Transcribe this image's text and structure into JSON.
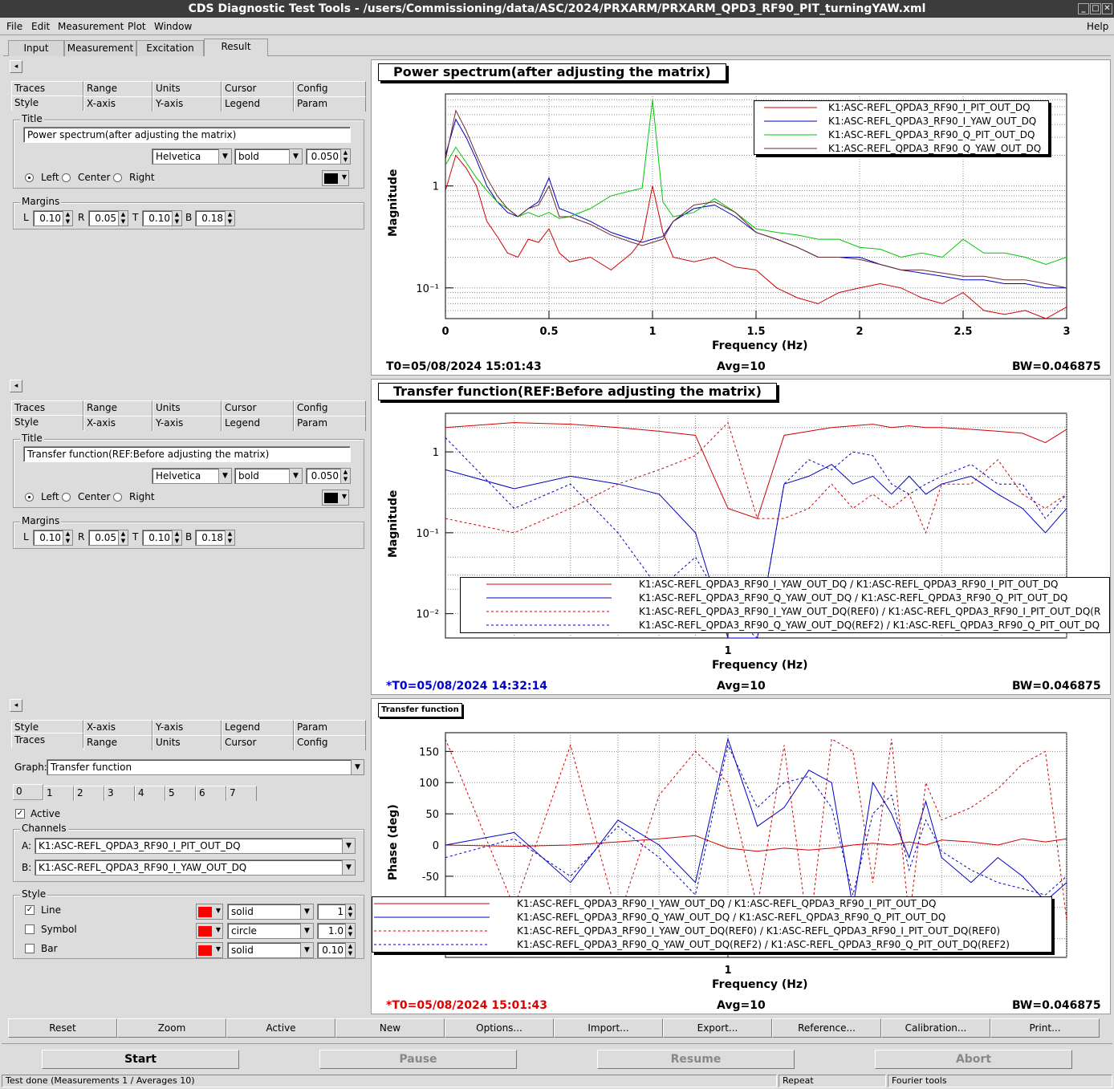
{
  "window": {
    "title": "CDS Diagnostic Test Tools - /users/Commissioning/data/ASC/2024/PRXARM/PRXARM_QPD3_RF90_PIT_turningYAW.xml"
  },
  "menu": {
    "file": "File",
    "edit": "Edit",
    "measurement": "Measurement",
    "plot": "Plot",
    "window": "Window",
    "help": "Help"
  },
  "tabs": {
    "input": "Input",
    "measurement": "Measurement",
    "excitation": "Excitation",
    "result": "Result"
  },
  "opt": {
    "traces": "Traces",
    "range": "Range",
    "units": "Units",
    "cursor": "Cursor",
    "config": "Config",
    "style": "Style",
    "xaxis": "X-axis",
    "yaxis": "Y-axis",
    "legend": "Legend",
    "param": "Param",
    "title_group": "Title",
    "font": "Helvetica",
    "weight": "bold",
    "size": "0.050",
    "left": "Left",
    "center": "Center",
    "right": "Right",
    "margins": "Margins",
    "L": "L",
    "R": "R",
    "T": "T",
    "B": "B",
    "mL": "0.10",
    "mR": "0.05",
    "mT": "0.10",
    "mB": "0.18"
  },
  "panel1": {
    "title_value": "Power spectrum(after adjusting the matrix)"
  },
  "panel2": {
    "title_value": "Transfer function(REF:Before adjusting the matrix)"
  },
  "panel3": {
    "graph_label": "Graph:",
    "graph_value": "Transfer function",
    "trace_tabs": [
      "0",
      "1",
      "2",
      "3",
      "4",
      "5",
      "6",
      "7"
    ],
    "active": "Active",
    "channels": "Channels",
    "a_label": "A:",
    "a_value": "K1:ASC-REFL_QPDA3_RF90_I_PIT_OUT_DQ",
    "b_label": "B:",
    "b_value": "K1:ASC-REFL_QPDA3_RF90_I_YAW_OUT_DQ",
    "style": "Style",
    "line": "Line",
    "symbol": "Symbol",
    "bar": "Bar",
    "line_style": "solid",
    "line_width": "1",
    "symbol_style": "circle",
    "symbol_size": "1.0",
    "bar_style": "solid",
    "bar_width": "0.10",
    "trace_color": "#ff0000"
  },
  "plot1": {
    "title": "Power spectrum(after adjusting the matrix)",
    "ylabel": "Magnitude",
    "xlabel": "Frequency (Hz)",
    "yticks": [
      "1",
      "10⁻¹"
    ],
    "xticks": [
      "0",
      "0.5",
      "1",
      "1.5",
      "2",
      "2.5",
      "3"
    ],
    "legend": [
      "K1:ASC-REFL_QPDA3_RF90_I_PIT_OUT_DQ",
      "K1:ASC-REFL_QPDA3_RF90_I_YAW_OUT_DQ",
      "K1:ASC-REFL_QPDA3_RF90_Q_PIT_OUT_DQ",
      "K1:ASC-REFL_QPDA3_RF90_Q_YAW_OUT_DQ"
    ],
    "t0": "T0=05/08/2024 15:01:43",
    "avg": "Avg=10",
    "bw": "BW=0.046875"
  },
  "plot2": {
    "title": "Transfer function(REF:Before adjusting the matrix)",
    "ylabel": "Magnitude",
    "xlabel": "Frequency (Hz)",
    "yticks": [
      "1",
      "10⁻¹",
      "10⁻²"
    ],
    "xticks": [
      "1"
    ],
    "legend": [
      "K1:ASC-REFL_QPDA3_RF90_I_YAW_OUT_DQ / K1:ASC-REFL_QPDA3_RF90_I_PIT_OUT_DQ",
      "K1:ASC-REFL_QPDA3_RF90_Q_YAW_OUT_DQ / K1:ASC-REFL_QPDA3_RF90_Q_PIT_OUT_DQ",
      "K1:ASC-REFL_QPDA3_RF90_I_YAW_OUT_DQ(REF0) / K1:ASC-REFL_QPDA3_RF90_I_PIT_OUT_DQ(R",
      "K1:ASC-REFL_QPDA3_RF90_Q_YAW_OUT_DQ(REF2) / K1:ASC-REFL_QPDA3_RF90_Q_PIT_OUT_DQ"
    ],
    "t0": "*T0=05/08/2024 14:32:14",
    "avg": "Avg=10",
    "bw": "BW=0.046875"
  },
  "plot3": {
    "title": "Transfer function",
    "ylabel": "Phase (deg)",
    "xlabel": "Frequency (Hz)",
    "yticks": [
      "150",
      "100",
      "50",
      "0",
      "-50"
    ],
    "xticks": [
      "1"
    ],
    "legend": [
      "K1:ASC-REFL_QPDA3_RF90_I_YAW_OUT_DQ / K1:ASC-REFL_QPDA3_RF90_I_PIT_OUT_DQ",
      "K1:ASC-REFL_QPDA3_RF90_Q_YAW_OUT_DQ / K1:ASC-REFL_QPDA3_RF90_Q_PIT_OUT_DQ",
      "K1:ASC-REFL_QPDA3_RF90_I_YAW_OUT_DQ(REF0) / K1:ASC-REFL_QPDA3_RF90_I_PIT_OUT_DQ(REF0)",
      "K1:ASC-REFL_QPDA3_RF90_Q_YAW_OUT_DQ(REF2) / K1:ASC-REFL_QPDA3_RF90_Q_PIT_OUT_DQ(REF2)"
    ],
    "t0": "*T0=05/08/2024 15:01:43",
    "avg": "Avg=10",
    "bw": "BW=0.046875"
  },
  "buttons": [
    "Reset",
    "Zoom",
    "Active",
    "New",
    "Options...",
    "Import...",
    "Export...",
    "Reference...",
    "Calibration...",
    "Print..."
  ],
  "control": {
    "start": "Start",
    "pause": "Pause",
    "resume": "Resume",
    "abort": "Abort"
  },
  "status": {
    "text": "Test done (Measurements 1 / Averages 10)",
    "repeat": "Repeat",
    "fourier": "Fourier tools"
  },
  "colors": {
    "red": "#d00000",
    "blue": "#0000c0",
    "green": "#00c800",
    "darkred": "#6a2a2a"
  },
  "chart_data": [
    {
      "type": "line",
      "title": "Power spectrum(after adjusting the matrix)",
      "xlabel": "Frequency (Hz)",
      "ylabel": "Magnitude",
      "yscale": "log",
      "xlim": [
        0,
        3
      ],
      "ylim": [
        0.05,
        8
      ],
      "x": [
        0,
        0.05,
        0.1,
        0.15,
        0.2,
        0.25,
        0.3,
        0.35,
        0.4,
        0.45,
        0.5,
        0.55,
        0.6,
        0.7,
        0.8,
        0.9,
        0.95,
        1.0,
        1.05,
        1.1,
        1.2,
        1.3,
        1.4,
        1.5,
        1.6,
        1.7,
        1.8,
        1.9,
        2.0,
        2.1,
        2.2,
        2.3,
        2.4,
        2.5,
        2.6,
        2.7,
        2.8,
        2.9,
        3.0
      ],
      "series": [
        {
          "name": "K1:ASC-REFL_QPDA3_RF90_I_PIT_OUT_DQ",
          "color": "#d00000",
          "values": [
            0.9,
            2.0,
            1.5,
            1.0,
            0.45,
            0.32,
            0.22,
            0.2,
            0.3,
            0.28,
            0.38,
            0.22,
            0.18,
            0.2,
            0.15,
            0.22,
            0.3,
            1.0,
            0.35,
            0.2,
            0.18,
            0.2,
            0.16,
            0.15,
            0.1,
            0.08,
            0.07,
            0.09,
            0.1,
            0.11,
            0.1,
            0.08,
            0.07,
            0.09,
            0.06,
            0.055,
            0.06,
            0.05,
            0.065
          ]
        },
        {
          "name": "K1:ASC-REFL_QPDA3_RF90_I_YAW_OUT_DQ",
          "color": "#0000c0",
          "values": [
            2.0,
            4.5,
            3.0,
            1.8,
            1.0,
            0.7,
            0.55,
            0.5,
            0.6,
            0.7,
            1.2,
            0.6,
            0.55,
            0.45,
            0.35,
            0.3,
            0.28,
            0.3,
            0.32,
            0.45,
            0.6,
            0.65,
            0.5,
            0.35,
            0.3,
            0.25,
            0.2,
            0.2,
            0.2,
            0.17,
            0.15,
            0.14,
            0.13,
            0.12,
            0.12,
            0.11,
            0.11,
            0.1,
            0.1
          ]
        },
        {
          "name": "K1:ASC-REFL_QPDA3_RF90_Q_PIT_OUT_DQ",
          "color": "#00c800",
          "values": [
            1.6,
            2.4,
            1.7,
            1.2,
            0.9,
            0.7,
            0.6,
            0.5,
            0.55,
            0.5,
            0.55,
            0.48,
            0.5,
            0.6,
            0.8,
            0.9,
            0.95,
            7.0,
            0.7,
            0.5,
            0.55,
            0.75,
            0.55,
            0.38,
            0.35,
            0.33,
            0.3,
            0.3,
            0.25,
            0.24,
            0.2,
            0.22,
            0.2,
            0.3,
            0.22,
            0.22,
            0.2,
            0.17,
            0.2
          ]
        },
        {
          "name": "K1:ASC-REFL_QPDA3_RF90_Q_YAW_OUT_DQ",
          "color": "#6a2a2a",
          "values": [
            1.8,
            5.5,
            3.5,
            2.0,
            1.2,
            0.8,
            0.6,
            0.5,
            0.6,
            0.65,
            1.0,
            0.5,
            0.5,
            0.42,
            0.33,
            0.28,
            0.26,
            0.28,
            0.3,
            0.45,
            0.65,
            0.7,
            0.55,
            0.35,
            0.3,
            0.25,
            0.2,
            0.2,
            0.19,
            0.17,
            0.15,
            0.15,
            0.14,
            0.13,
            0.13,
            0.12,
            0.12,
            0.11,
            0.1
          ]
        }
      ]
    },
    {
      "type": "line",
      "title": "Transfer function(REF:Before adjusting the matrix)",
      "xlabel": "Frequency (Hz)",
      "ylabel": "Magnitude",
      "yscale": "log",
      "ylim": [
        0.005,
        3
      ],
      "x": [
        0.4,
        0.5,
        0.6,
        0.7,
        0.8,
        0.9,
        1.0,
        1.1,
        1.2,
        1.3,
        1.4,
        1.5,
        1.6,
        1.7,
        1.8,
        1.9,
        2.0,
        2.2,
        2.4,
        2.6,
        2.8,
        3.0
      ],
      "series": [
        {
          "name": "K1:ASC-REFL_QPDA3_RF90_I_YAW_OUT_DQ / K1:ASC-REFL_QPDA3_RF90_I_PIT_OUT_DQ",
          "color": "#d00000",
          "dash": "solid",
          "values": [
            2.0,
            2.3,
            2.2,
            2.0,
            1.8,
            1.6,
            0.2,
            0.15,
            1.6,
            1.8,
            2.0,
            2.1,
            2.2,
            2.0,
            2.1,
            2.0,
            2.0,
            1.9,
            1.8,
            1.7,
            1.3,
            1.9
          ]
        },
        {
          "name": "K1:ASC-REFL_QPDA3_RF90_Q_YAW_OUT_DQ / K1:ASC-REFL_QPDA3_RF90_Q_PIT_OUT_DQ",
          "color": "#0000c0",
          "dash": "solid",
          "values": [
            0.6,
            0.35,
            0.5,
            0.4,
            0.3,
            0.1,
            0.003,
            0.003,
            0.4,
            0.5,
            0.7,
            0.4,
            0.5,
            0.3,
            0.5,
            0.3,
            0.4,
            0.5,
            0.3,
            0.2,
            0.1,
            0.2
          ]
        },
        {
          "name": "K1:ASC-REFL_QPDA3_RF90_I_YAW_OUT_DQ(REF0) / K1:ASC-REFL_QPDA3_RF90_I_PIT_OUT_DQ(R",
          "color": "#d00000",
          "dash": "dashed",
          "values": [
            0.15,
            0.1,
            0.2,
            0.4,
            0.6,
            0.9,
            2.3,
            0.15,
            0.15,
            0.2,
            0.4,
            0.2,
            0.3,
            0.2,
            0.3,
            0.1,
            0.4,
            0.4,
            0.8,
            0.3,
            0.2,
            0.3
          ]
        },
        {
          "name": "K1:ASC-REFL_QPDA3_RF90_Q_YAW_OUT_DQ(REF2) / K1:ASC-REFL_QPDA3_RF90_Q_PIT_OUT_DQ",
          "color": "#0000c0",
          "dash": "dashed",
          "values": [
            1.5,
            0.2,
            0.4,
            0.1,
            0.02,
            0.05,
            0.01,
            0.003,
            0.4,
            0.8,
            0.6,
            1.0,
            0.9,
            0.4,
            0.3,
            0.4,
            0.5,
            0.7,
            0.4,
            0.4,
            0.15,
            0.3
          ]
        }
      ]
    },
    {
      "type": "line",
      "title": "Transfer function",
      "xlabel": "Frequency (Hz)",
      "ylabel": "Phase (deg)",
      "ylim": [
        -180,
        180
      ],
      "x": [
        0.4,
        0.5,
        0.6,
        0.7,
        0.8,
        0.9,
        1.0,
        1.1,
        1.2,
        1.3,
        1.4,
        1.5,
        1.6,
        1.7,
        1.8,
        1.9,
        2.0,
        2.2,
        2.4,
        2.6,
        2.8,
        3.0
      ],
      "series": [
        {
          "name": "K1:ASC-REFL_QPDA3_RF90_I_YAW_OUT_DQ / K1:ASC-REFL_QPDA3_RF90_I_PIT_OUT_DQ",
          "color": "#d00000",
          "dash": "solid",
          "values": [
            0,
            -2,
            0,
            5,
            10,
            15,
            -5,
            -10,
            -5,
            -8,
            -5,
            0,
            3,
            0,
            5,
            0,
            8,
            5,
            0,
            10,
            5,
            10
          ]
        },
        {
          "name": "K1:ASC-REFL_QPDA3_RF90_Q_YAW_OUT_DQ / K1:ASC-REFL_QPDA3_RF90_Q_PIT_OUT_DQ",
          "color": "#0000c0",
          "dash": "solid",
          "values": [
            0,
            20,
            -60,
            40,
            0,
            -60,
            170,
            30,
            60,
            120,
            100,
            -100,
            100,
            50,
            -20,
            70,
            -20,
            -60,
            -20,
            -50,
            -90,
            -60
          ]
        },
        {
          "name": "K1:ASC-REFL_QPDA3_RF90_I_YAW_OUT_DQ(REF0) / K1:ASC-REFL_QPDA3_RF90_I_PIT_OUT_DQ(REF0)",
          "color": "#d00000",
          "dash": "dashed",
          "values": [
            170,
            -100,
            160,
            -120,
            80,
            150,
            100,
            -100,
            160,
            -150,
            170,
            150,
            -60,
            170,
            -120,
            100,
            40,
            60,
            90,
            130,
            150,
            -120
          ]
        },
        {
          "name": "K1:ASC-REFL_QPDA3_RF90_Q_YAW_OUT_DQ(REF2) / K1:ASC-REFL_QPDA3_RF90_Q_PIT_OUT_DQ(REF2)",
          "color": "#0000c0",
          "dash": "dashed",
          "values": [
            -20,
            10,
            -50,
            30,
            -20,
            -80,
            160,
            60,
            100,
            110,
            60,
            -80,
            50,
            80,
            -40,
            40,
            -10,
            -40,
            -60,
            -70,
            -80,
            -50
          ]
        }
      ]
    }
  ]
}
